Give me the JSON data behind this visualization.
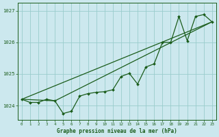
{
  "title": "Graphe pression niveau de la mer (hPa)",
  "bg_color": "#cce8ee",
  "grid_color": "#99cccc",
  "line_color": "#1a5c1a",
  "xlim": [
    -0.5,
    23.5
  ],
  "ylim": [
    1023.55,
    1027.25
  ],
  "yticks": [
    1024,
    1025,
    1026,
    1027
  ],
  "xticks": [
    0,
    1,
    2,
    3,
    4,
    5,
    6,
    7,
    8,
    9,
    10,
    11,
    12,
    13,
    14,
    15,
    16,
    17,
    18,
    19,
    20,
    21,
    22,
    23
  ],
  "series1_x": [
    0,
    1,
    2,
    3,
    4,
    5,
    6,
    7,
    8,
    9,
    10,
    11,
    12,
    13,
    14,
    15,
    16,
    17,
    18,
    19,
    20,
    21,
    22,
    23
  ],
  "series1_y": [
    1024.2,
    1024.1,
    1024.1,
    1024.2,
    1024.15,
    1023.75,
    1023.82,
    1024.3,
    1024.38,
    1024.42,
    1024.44,
    1024.5,
    1024.92,
    1025.02,
    1024.68,
    1025.22,
    1025.32,
    1026.0,
    1026.0,
    1026.82,
    1026.05,
    1026.82,
    1026.88,
    1026.65
  ],
  "series2_x": [
    0,
    23
  ],
  "series2_y": [
    1024.2,
    1026.65
  ],
  "series3_x": [
    0,
    4,
    23
  ],
  "series3_y": [
    1024.2,
    1024.15,
    1026.65
  ]
}
